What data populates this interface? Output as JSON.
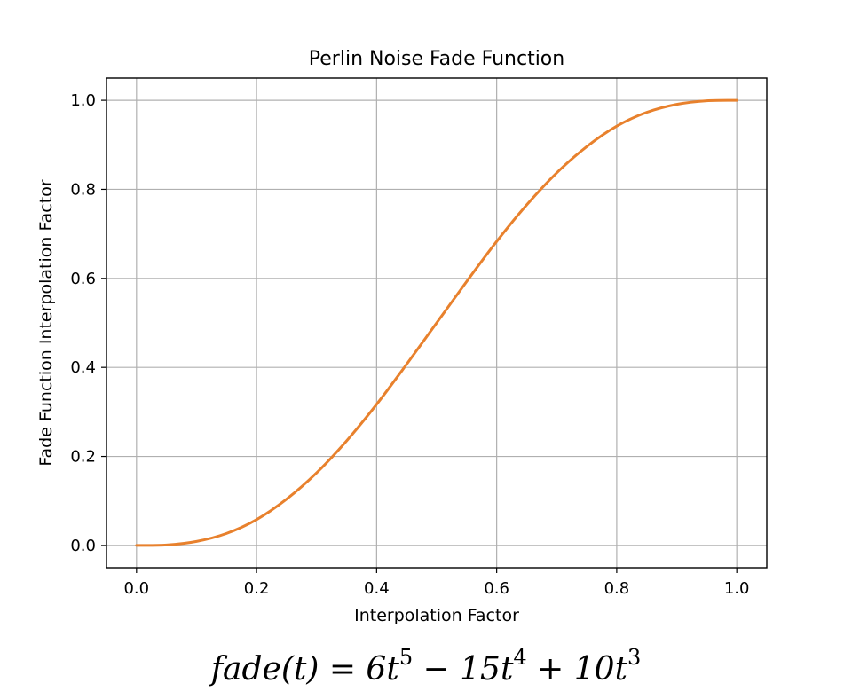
{
  "chart_data": {
    "type": "line",
    "title": "Perlin Noise Fade Function",
    "xlabel": "Interpolation Factor",
    "ylabel": "Fade Function Interpolation Factor",
    "xlim": [
      -0.05,
      1.05
    ],
    "ylim": [
      -0.05,
      1.05
    ],
    "grid": true,
    "xticks": [
      0.0,
      0.2,
      0.4,
      0.6,
      0.8,
      1.0
    ],
    "xtick_labels": [
      "0.0",
      "0.2",
      "0.4",
      "0.6",
      "0.8",
      "1.0"
    ],
    "yticks": [
      0.0,
      0.2,
      0.4,
      0.6,
      0.8,
      1.0
    ],
    "ytick_labels": [
      "0.0",
      "0.2",
      "0.4",
      "0.6",
      "0.8",
      "1.0"
    ],
    "series": [
      {
        "color": "#e8812d",
        "x": [
          0.0,
          0.05,
          0.1,
          0.15,
          0.2,
          0.25,
          0.3,
          0.35,
          0.4,
          0.45,
          0.5,
          0.55,
          0.6,
          0.65,
          0.7,
          0.75,
          0.8,
          0.85,
          0.9,
          0.95,
          1.0
        ],
        "y": [
          0.0,
          0.001,
          0.009,
          0.027,
          0.058,
          0.104,
          0.163,
          0.235,
          0.317,
          0.407,
          0.5,
          0.593,
          0.683,
          0.765,
          0.837,
          0.896,
          0.942,
          0.973,
          0.991,
          0.999,
          1.0
        ]
      }
    ]
  },
  "formula": {
    "fn": "fade(t) = 6t",
    "p1": "5",
    "mid1": " − 15t",
    "p2": "4",
    "mid2": " + 10t",
    "p3": "3"
  }
}
